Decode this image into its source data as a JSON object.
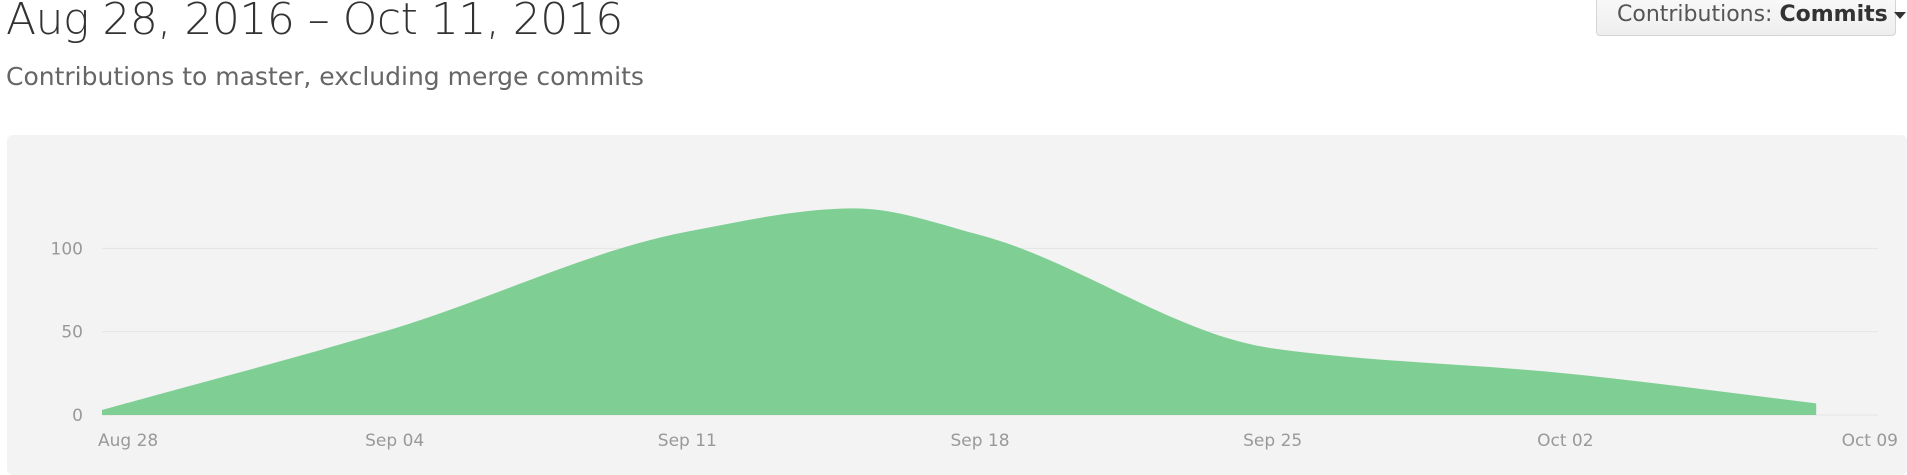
{
  "header": {
    "date_range": "Aug 28, 2016 – Oct 11, 2016",
    "subtitle": "Contributions to master, excluding merge commits"
  },
  "contributions_select": {
    "label": "Contributions: ",
    "value": "Commits"
  },
  "chart_data": {
    "type": "area",
    "x": [
      "2016-08-28",
      "2016-09-04",
      "2016-09-11",
      "2016-09-15",
      "2016-09-18",
      "2016-09-25",
      "2016-10-02",
      "2016-10-08"
    ],
    "y": [
      3,
      52,
      110,
      124,
      108,
      40,
      25,
      7
    ],
    "series": [
      {
        "name": "",
        "values": [
          3,
          52,
          110,
          124,
          108,
          40,
          25,
          7
        ]
      }
    ],
    "xlabel": "",
    "ylabel": "",
    "x_ticks": [
      "Aug 28",
      "Sep 04",
      "Sep 11",
      "Sep 18",
      "Sep 25",
      "Oct 02",
      "Oct 09"
    ],
    "y_ticks": [
      "0",
      "50",
      "100"
    ],
    "xlim": [
      "2016-08-28",
      "2016-10-09"
    ],
    "ylim": [
      0,
      150
    ],
    "grid": true,
    "fill_color": "#7fcf94"
  }
}
